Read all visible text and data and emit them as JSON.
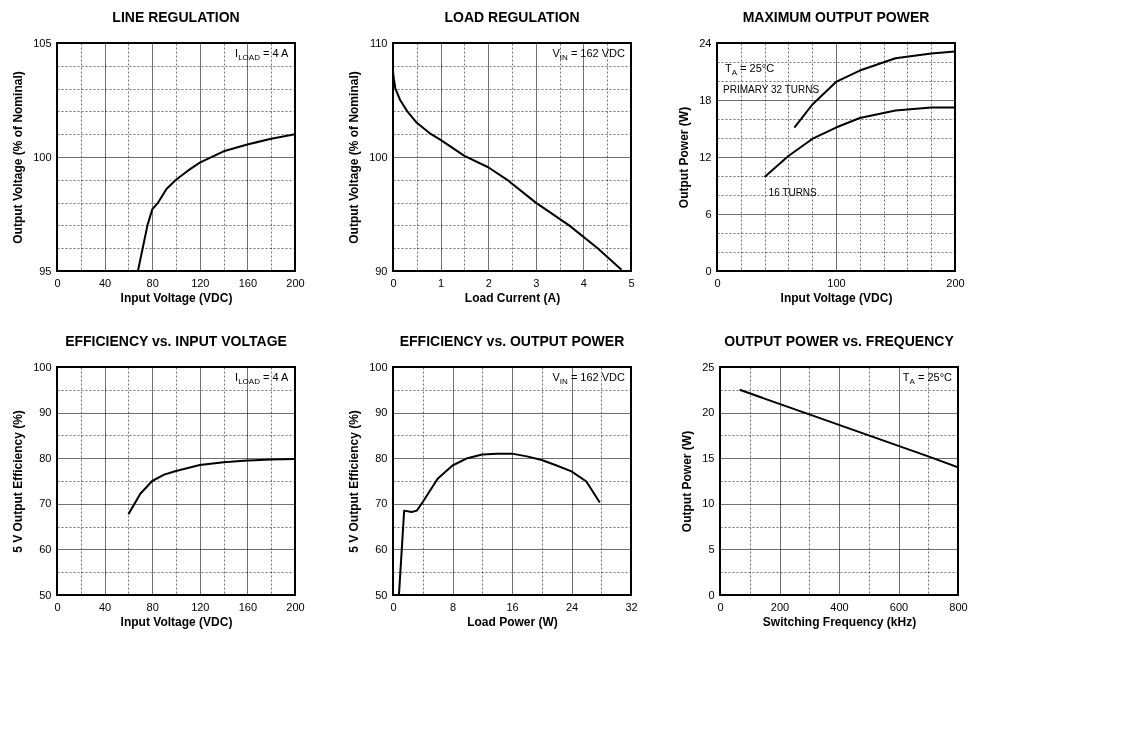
{
  "chart_data": [
    {
      "type": "line",
      "title": "LINE REGULATION",
      "xlabel": "Input Voltage (VDC)",
      "ylabel": "Output Voltage (% of Nominal)",
      "annotations": [
        "I$_{LOAD}$ = 4 A"
      ],
      "grid": true,
      "xlim": [
        0,
        200
      ],
      "ylim": [
        95,
        105
      ],
      "xticks": [
        0,
        {
          "value": 20,
          "label": null
        },
        40,
        {
          "value": 60,
          "label": null
        },
        80,
        {
          "value": 100,
          "label": null
        },
        120,
        {
          "value": 140,
          "label": null
        },
        160,
        {
          "value": 180,
          "label": null
        },
        200
      ],
      "yticks": [
        95,
        {
          "value": 96,
          "label": null
        },
        {
          "value": 97,
          "label": null
        },
        {
          "value": 98,
          "label": null
        },
        {
          "value": 99,
          "label": null
        },
        100,
        {
          "value": 101,
          "label": null
        },
        {
          "value": 102,
          "label": null
        },
        {
          "value": 103,
          "label": null
        },
        {
          "value": 104,
          "label": null
        },
        105
      ],
      "series": [
        {
          "color": "#000000",
          "x": [
            68,
            72,
            76,
            80,
            85,
            92,
            100,
            110,
            120,
            140,
            160,
            180,
            200
          ],
          "values": [
            95,
            96,
            97,
            97.7,
            98,
            98.6,
            99,
            99.4,
            99.75,
            100.25,
            100.55,
            100.8,
            101
          ]
        }
      ]
    },
    {
      "type": "line",
      "title": "LOAD REGULATION",
      "xlabel": "Load Current (A)",
      "ylabel": "Output Voltage (% of Nominal)",
      "annotations": [
        "V$_{IN}$ = 162 VDC"
      ],
      "grid": true,
      "xlim": [
        0,
        5
      ],
      "ylim": [
        90,
        110
      ],
      "xticks": [
        0,
        {
          "value": 0.5,
          "label": null
        },
        1,
        {
          "value": 1.5,
          "label": null
        },
        2,
        {
          "value": 2.5,
          "label": null
        },
        3,
        {
          "value": 3.5,
          "label": null
        },
        4,
        {
          "value": 4.5,
          "label": null
        },
        5
      ],
      "yticks": [
        90,
        {
          "value": 92,
          "label": null
        },
        {
          "value": 94,
          "label": null
        },
        {
          "value": 96,
          "label": null
        },
        {
          "value": 98,
          "label": null
        },
        100,
        {
          "value": 102,
          "label": null
        },
        {
          "value": 104,
          "label": null
        },
        {
          "value": 106,
          "label": null
        },
        {
          "value": 108,
          "label": null
        },
        110
      ],
      "series": [
        {
          "color": "#000000",
          "x": [
            0,
            0.02,
            0.05,
            0.15,
            0.3,
            0.5,
            0.8,
            1,
            1.5,
            2,
            2.4,
            3,
            3.7,
            4.3,
            4.8
          ],
          "values": [
            107.5,
            106.8,
            106,
            105,
            104,
            103,
            102,
            101.5,
            100.1,
            99.1,
            98,
            96,
            94,
            92,
            90.1
          ]
        }
      ]
    },
    {
      "type": "line",
      "title": "MAXIMUM OUTPUT POWER",
      "xlabel": "Input Voltage (VDC)",
      "ylabel": "Output Power (W)",
      "annotations": [
        "T$_{A}$ = 25°C"
      ],
      "grid": true,
      "xlim": [
        0,
        200
      ],
      "ylim": [
        0,
        24
      ],
      "xticks": [
        0,
        {
          "value": 20,
          "label": null
        },
        {
          "value": 40,
          "label": null
        },
        {
          "value": 60,
          "label": null
        },
        {
          "value": 80,
          "label": null
        },
        100,
        {
          "value": 120,
          "label": null
        },
        {
          "value": 140,
          "label": null
        },
        {
          "value": 160,
          "label": null
        },
        {
          "value": 180,
          "label": null
        },
        200
      ],
      "yticks": [
        0,
        {
          "value": 2,
          "label": null
        },
        {
          "value": 4,
          "label": null
        },
        6,
        {
          "value": 8,
          "label": null
        },
        {
          "value": 10,
          "label": null
        },
        12,
        {
          "value": 14,
          "label": null
        },
        {
          "value": 16,
          "label": null
        },
        18,
        {
          "value": 20,
          "label": null
        },
        {
          "value": 22,
          "label": null
        },
        24
      ],
      "series": [
        {
          "name": "PRIMARY 32 TURNS",
          "color": "#000000",
          "x": [
            65,
            80,
            100,
            120,
            150,
            180,
            200
          ],
          "values": [
            15.1,
            17.5,
            19.9,
            21.1,
            22.4,
            22.9,
            23.1
          ]
        },
        {
          "name": "16 TURNS",
          "color": "#000000",
          "x": [
            40,
            60,
            80,
            100,
            120,
            150,
            180,
            200
          ],
          "values": [
            9.9,
            12.1,
            13.9,
            15.1,
            16.1,
            16.9,
            17.2,
            17.2
          ]
        }
      ]
    },
    {
      "type": "line",
      "title": "EFFICIENCY vs. INPUT VOLTAGE",
      "xlabel": "Input Voltage (VDC)",
      "ylabel": "5 V Output Efficiency (%)",
      "annotations": [
        "I$_{LOAD}$ = 4 A"
      ],
      "grid": true,
      "xlim": [
        0,
        200
      ],
      "ylim": [
        50,
        100
      ],
      "xticks": [
        0,
        {
          "value": 20,
          "label": null
        },
        40,
        {
          "value": 60,
          "label": null
        },
        80,
        {
          "value": 100,
          "label": null
        },
        120,
        {
          "value": 140,
          "label": null
        },
        160,
        {
          "value": 180,
          "label": null
        },
        200
      ],
      "yticks": [
        50,
        {
          "value": 55,
          "label": null
        },
        60,
        {
          "value": 65,
          "label": null
        },
        70,
        {
          "value": 75,
          "label": null
        },
        80,
        {
          "value": 85,
          "label": null
        },
        90,
        {
          "value": 95,
          "label": null
        },
        100
      ],
      "series": [
        {
          "color": "#000000",
          "x": [
            60,
            70,
            80,
            90,
            100,
            120,
            140,
            160,
            180,
            200
          ],
          "values": [
            67.7,
            72.2,
            75,
            76.4,
            77.2,
            78.5,
            79.1,
            79.5,
            79.7,
            79.8
          ]
        }
      ]
    },
    {
      "type": "line",
      "title": "EFFICIENCY vs. OUTPUT POWER",
      "xlabel": "Load Power (W)",
      "ylabel": "5 V Output Efficiency (%)",
      "annotations": [
        "V$_{IN}$ = 162 VDC"
      ],
      "grid": true,
      "xlim": [
        0,
        32
      ],
      "ylim": [
        50,
        100
      ],
      "xticks": [
        0,
        {
          "value": 4,
          "label": null
        },
        8,
        {
          "value": 12,
          "label": null
        },
        16,
        {
          "value": 20,
          "label": null
        },
        24,
        {
          "value": 28,
          "label": null
        },
        32
      ],
      "yticks": [
        50,
        {
          "value": 55,
          "label": null
        },
        60,
        {
          "value": 65,
          "label": null
        },
        70,
        {
          "value": 75,
          "label": null
        },
        80,
        {
          "value": 85,
          "label": null
        },
        90,
        {
          "value": 95,
          "label": null
        },
        100
      ],
      "series": [
        {
          "color": "#000000",
          "x": [
            0.8,
            1.5,
            2.5,
            3.2,
            4,
            6,
            8,
            10,
            12,
            14,
            16,
            18,
            20,
            22,
            24,
            26,
            27.8
          ],
          "values": [
            50,
            68.5,
            68.2,
            68.5,
            70.4,
            75.5,
            78.4,
            80,
            80.8,
            81,
            81,
            80.4,
            79.6,
            78.4,
            77.1,
            74.9,
            70.3
          ]
        }
      ]
    },
    {
      "type": "line",
      "title": "OUTPUT POWER vs. FREQUENCY",
      "xlabel": "Switching Frequency (kHz)",
      "ylabel": "Output Power (W)",
      "annotations": [
        "T$_{A}$ = 25°C"
      ],
      "grid": true,
      "xlim": [
        0,
        800
      ],
      "ylim": [
        0,
        25
      ],
      "xticks": [
        0,
        {
          "value": 100,
          "label": null
        },
        200,
        {
          "value": 300,
          "label": null
        },
        400,
        {
          "value": 500,
          "label": null
        },
        600,
        {
          "value": 700,
          "label": null
        },
        800
      ],
      "yticks": [
        0,
        {
          "value": 2.5,
          "label": null
        },
        5,
        {
          "value": 7.5,
          "label": null
        },
        10,
        {
          "value": 12.5,
          "label": null
        },
        15,
        {
          "value": 17.5,
          "label": null
        },
        20,
        {
          "value": 22.5,
          "label": null
        },
        25
      ],
      "series": [
        {
          "color": "#000000",
          "x": [
            66,
            300,
            500,
            700,
            800
          ],
          "values": [
            22.5,
            19.8,
            17.5,
            15.2,
            14
          ]
        }
      ]
    }
  ]
}
